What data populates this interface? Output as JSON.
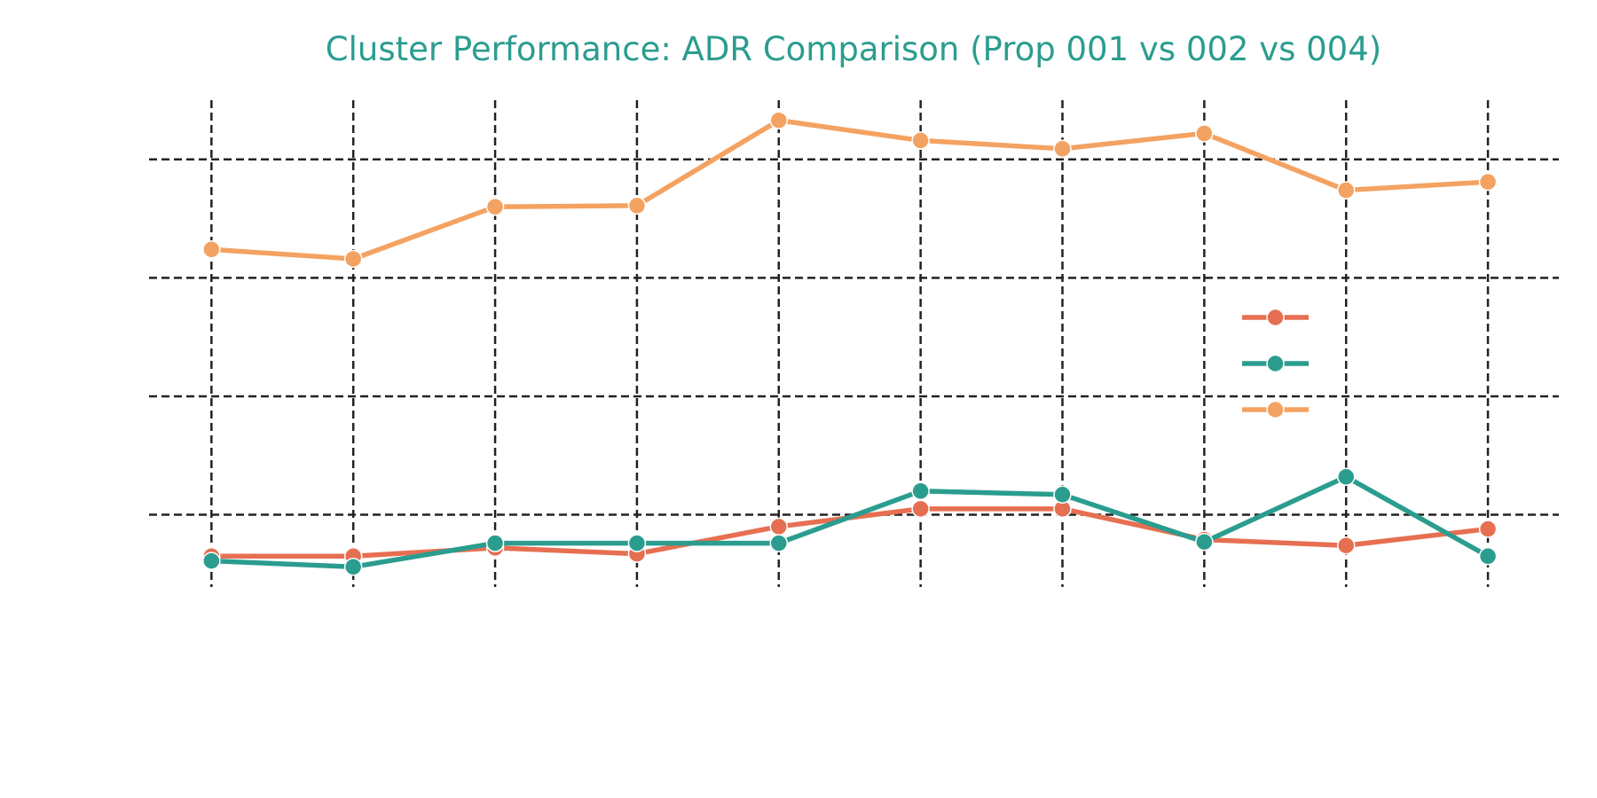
{
  "chart_data": {
    "type": "line",
    "title": "Cluster Performance: ADR Comparison (Prop 001 vs 002 vs 004)",
    "title_color": "#2a9d8f",
    "xlabel": "",
    "ylabel": "",
    "x": [
      1,
      2,
      3,
      4,
      5,
      6,
      7,
      8,
      9,
      10
    ],
    "xlim": [
      0.56,
      10.5
    ],
    "ylim": [
      0.39,
      4.5
    ],
    "y_gridlines": [
      1,
      2,
      3,
      4
    ],
    "grid": true,
    "grid_style": "dashed",
    "legend_placement": "right",
    "series": [
      {
        "color": "#e76f51",
        "values": [
          0.65,
          0.65,
          0.72,
          0.67,
          0.9,
          1.05,
          1.05,
          0.79,
          0.74,
          0.88
        ]
      },
      {
        "color": "#2a9d8f",
        "values": [
          0.61,
          0.56,
          0.76,
          0.76,
          0.76,
          1.2,
          1.17,
          0.77,
          1.32,
          0.65
        ]
      },
      {
        "color": "#f4a261",
        "values": [
          3.24,
          3.16,
          3.6,
          3.61,
          4.33,
          4.16,
          4.09,
          4.22,
          3.74,
          3.81
        ]
      }
    ]
  }
}
